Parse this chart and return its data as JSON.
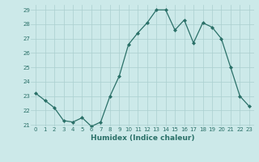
{
  "x": [
    0,
    1,
    2,
    3,
    4,
    5,
    6,
    7,
    8,
    9,
    10,
    11,
    12,
    13,
    14,
    15,
    16,
    17,
    18,
    19,
    20,
    21,
    22,
    23
  ],
  "y": [
    23.2,
    22.7,
    22.2,
    21.3,
    21.2,
    21.5,
    20.9,
    21.2,
    23.0,
    24.4,
    26.6,
    27.4,
    28.1,
    29.0,
    29.0,
    27.6,
    28.3,
    26.7,
    28.1,
    27.8,
    27.0,
    25.0,
    23.0,
    22.3
  ],
  "xlabel": "Humidex (Indice chaleur)",
  "ylim_min": 21,
  "ylim_max": 29,
  "xlim_min": 0,
  "xlim_max": 23,
  "yticks": [
    21,
    22,
    23,
    24,
    25,
    26,
    27,
    28,
    29
  ],
  "xticks": [
    0,
    1,
    2,
    3,
    4,
    5,
    6,
    7,
    8,
    9,
    10,
    11,
    12,
    13,
    14,
    15,
    16,
    17,
    18,
    19,
    20,
    21,
    22,
    23
  ],
  "line_color": "#2a7068",
  "bg_color": "#cce9e9",
  "grid_color": "#aacfcf",
  "label_color": "#2a7068",
  "tick_fontsize": 5.0,
  "xlabel_fontsize": 6.5
}
